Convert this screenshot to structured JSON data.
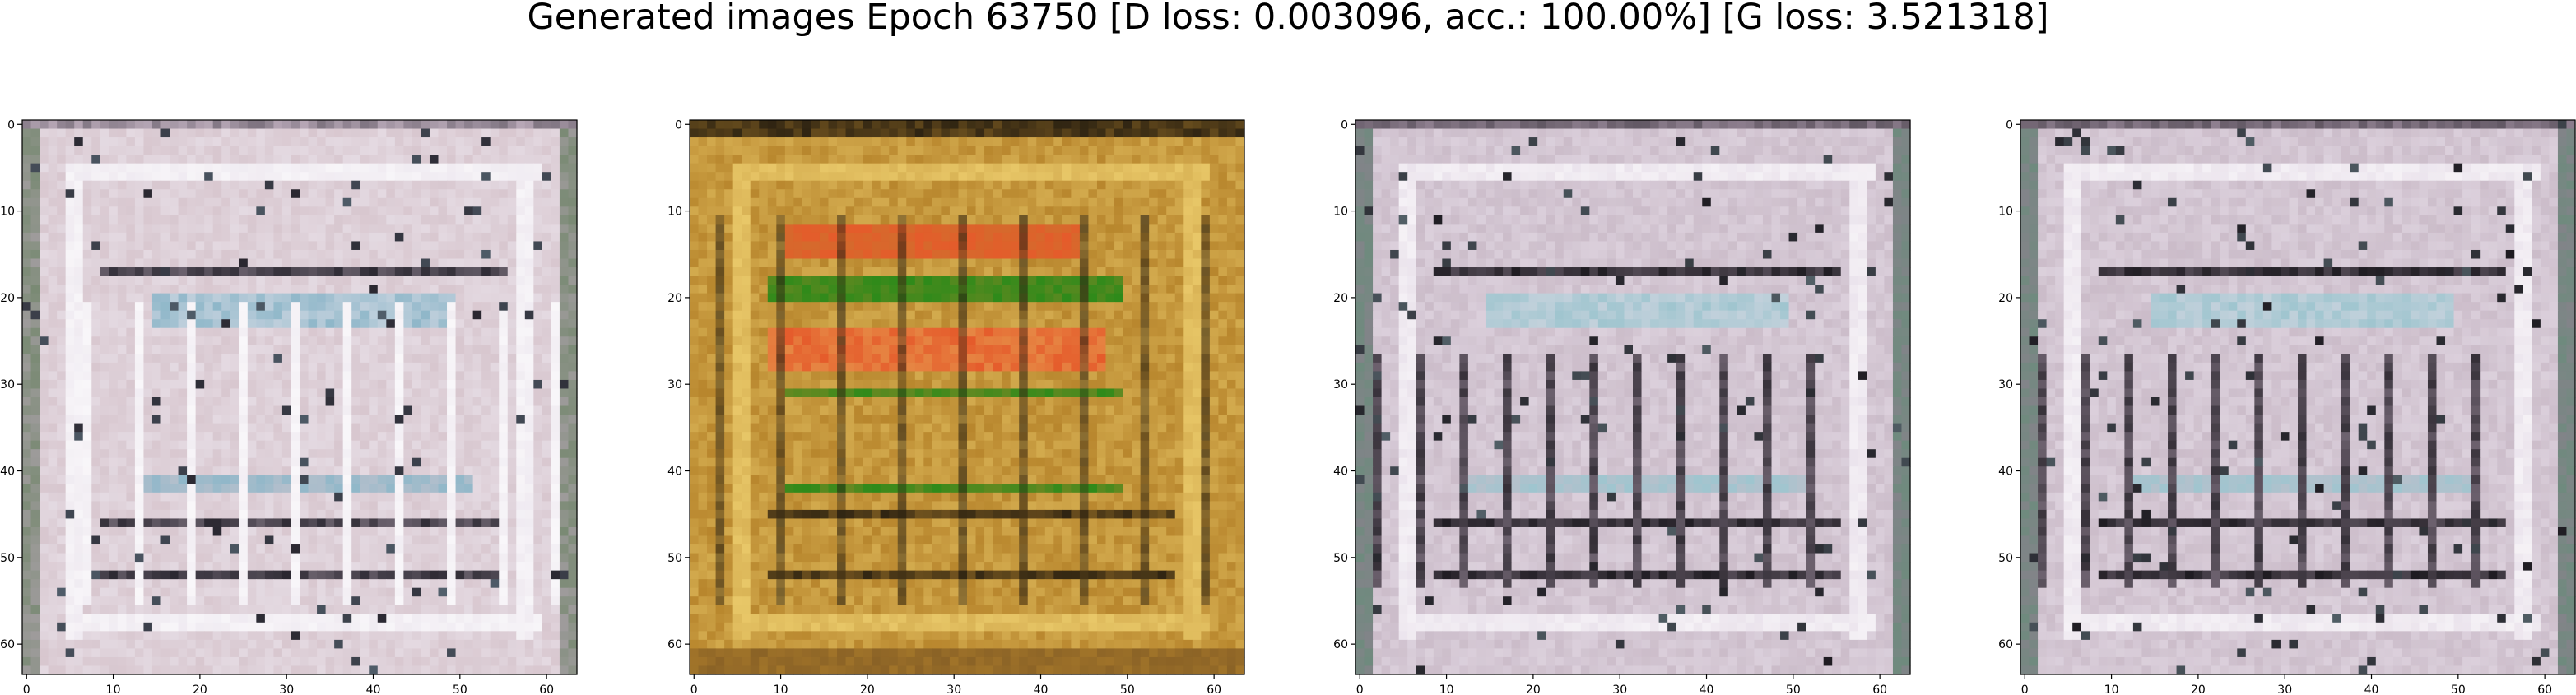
{
  "figure": {
    "title": "Generated images Epoch 63750 [D loss: 0.003096, acc.: 100.00%] [G loss: 3.521318]"
  },
  "axes_style": {
    "x_ticks": [
      "0",
      "10",
      "20",
      "30",
      "40",
      "50",
      "60"
    ],
    "y_ticks": [
      "0",
      "10",
      "20",
      "30",
      "40",
      "50",
      "60"
    ],
    "tick_values": [
      0,
      10,
      20,
      30,
      40,
      50,
      60
    ],
    "image_size": 64
  },
  "panels": [
    {
      "name": "generated-image-1",
      "palette": {
        "base": "#d8c7cf",
        "light": "#ece6ee",
        "accent": "#8fb7c9",
        "dark": "#2a2730",
        "mid": "#b7a7b6",
        "edge": "#7a8a74"
      }
    },
    {
      "name": "generated-image-2",
      "palette": {
        "base": "#b8862d",
        "light": "#e8c768",
        "accent": "#e55b2b",
        "dark": "#2f2412",
        "mid": "#8a6226",
        "green": "#2e8a1a"
      }
    },
    {
      "name": "generated-image-3",
      "palette": {
        "base": "#cbbcc9",
        "light": "#e6dde8",
        "accent": "#9fc5cf",
        "dark": "#1f1c22",
        "mid": "#8f8090",
        "edge": "#6f8a7e"
      }
    },
    {
      "name": "generated-image-4",
      "palette": {
        "base": "#cbbcc9",
        "light": "#e6dde8",
        "accent": "#9fc5cf",
        "dark": "#1f1c22",
        "mid": "#8f8090",
        "edge": "#6f8a7e"
      }
    }
  ]
}
